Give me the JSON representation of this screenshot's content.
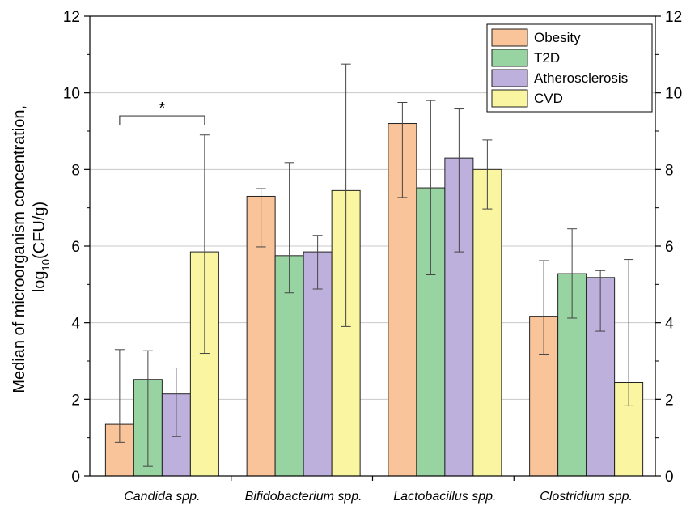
{
  "chart_data": {
    "type": "bar",
    "ylabel_line1": "Median of microorganism concentration,",
    "ylabel_line2_prefix": "log",
    "ylabel_line2_sub": "10",
    "ylabel_line2_suffix": "(CFU/g)",
    "ylim": [
      0,
      12
    ],
    "yticks": [
      "0",
      "2",
      "4",
      "6",
      "8",
      "10",
      "12"
    ],
    "grid": true,
    "legend_position": "top-right",
    "categories": [
      "Candida spp.",
      "Bifidobacterium spp.",
      "Lactobacillus spp.",
      "Clostridium spp."
    ],
    "series": [
      {
        "name": "Obesity",
        "color": "#f9c49a",
        "values": [
          1.35,
          7.3,
          9.2,
          4.17
        ],
        "err_low": [
          0.88,
          5.98,
          7.27,
          3.18
        ],
        "err_high": [
          3.3,
          7.5,
          9.75,
          5.62
        ]
      },
      {
        "name": "T2D",
        "color": "#98d3a2",
        "values": [
          2.52,
          5.75,
          7.52,
          5.28
        ],
        "err_low": [
          0.25,
          4.78,
          5.25,
          4.12
        ],
        "err_high": [
          3.27,
          8.18,
          9.8,
          6.45
        ]
      },
      {
        "name": "Atherosclerosis",
        "color": "#bdb0dd",
        "values": [
          2.14,
          5.85,
          8.3,
          5.18
        ],
        "err_low": [
          1.03,
          4.88,
          5.85,
          3.78
        ],
        "err_high": [
          2.82,
          6.28,
          9.58,
          5.36
        ]
      },
      {
        "name": "CVD",
        "color": "#f9f5a0",
        "values": [
          5.85,
          7.45,
          8.0,
          2.44
        ],
        "err_low": [
          3.2,
          3.9,
          6.97,
          1.83
        ],
        "err_high": [
          8.9,
          10.75,
          8.77,
          5.65
        ]
      }
    ],
    "significance": [
      {
        "label": "*",
        "category": "Candida spp.",
        "from_series": "Obesity",
        "to_series": "CVD",
        "y": 9.4
      }
    ]
  }
}
